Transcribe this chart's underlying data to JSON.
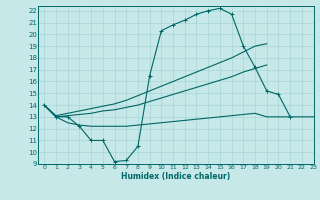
{
  "xlabel": "Humidex (Indice chaleur)",
  "bg_color": "#c6e8e8",
  "grid_color": "#a8d4d4",
  "line_color": "#006666",
  "xlim": [
    -0.5,
    23
  ],
  "ylim": [
    9,
    22.4
  ],
  "xticks": [
    0,
    1,
    2,
    3,
    4,
    5,
    6,
    7,
    8,
    9,
    10,
    11,
    12,
    13,
    14,
    15,
    16,
    17,
    18,
    19,
    20,
    21,
    22,
    23
  ],
  "yticks": [
    9,
    10,
    11,
    12,
    13,
    14,
    15,
    16,
    17,
    18,
    19,
    20,
    21,
    22
  ],
  "series": [
    {
      "x": [
        0,
        1,
        2,
        3,
        4,
        5,
        6,
        7,
        8,
        9,
        10,
        11,
        12,
        13,
        14,
        15,
        16,
        17,
        18,
        19,
        20,
        21
      ],
      "y": [
        14,
        13,
        13,
        12.2,
        11,
        11,
        9.2,
        9.3,
        10.5,
        16.5,
        20.3,
        20.8,
        21.2,
        21.7,
        22,
        22.2,
        21.7,
        19,
        17.2,
        15.2,
        14.9,
        13
      ],
      "marker": true
    },
    {
      "x": [
        0,
        1,
        2,
        3,
        4,
        5,
        6,
        7,
        8,
        9,
        10,
        11,
        12,
        13,
        14,
        15,
        16,
        17,
        18,
        19
      ],
      "y": [
        14,
        13.1,
        13.3,
        13.5,
        13.7,
        13.9,
        14.1,
        14.4,
        14.8,
        15.2,
        15.6,
        16.0,
        16.4,
        16.8,
        17.2,
        17.6,
        18.0,
        18.5,
        19.0,
        19.2
      ],
      "marker": false
    },
    {
      "x": [
        0,
        1,
        2,
        3,
        4,
        5,
        6,
        7,
        8,
        9,
        10,
        11,
        12,
        13,
        14,
        15,
        16,
        17,
        18,
        19
      ],
      "y": [
        14,
        13.0,
        13.1,
        13.2,
        13.3,
        13.5,
        13.6,
        13.8,
        14.0,
        14.3,
        14.6,
        14.9,
        15.2,
        15.5,
        15.8,
        16.1,
        16.4,
        16.8,
        17.1,
        17.4
      ],
      "marker": false
    },
    {
      "x": [
        0,
        1,
        2,
        3,
        4,
        5,
        6,
        7,
        8,
        9,
        10,
        11,
        12,
        13,
        14,
        15,
        16,
        17,
        18,
        19,
        20,
        21,
        22,
        23
      ],
      "y": [
        14,
        13.0,
        12.5,
        12.3,
        12.2,
        12.2,
        12.2,
        12.2,
        12.3,
        12.4,
        12.5,
        12.6,
        12.7,
        12.8,
        12.9,
        13.0,
        13.1,
        13.2,
        13.3,
        13.0,
        13.0,
        13.0,
        13.0,
        13.0
      ],
      "marker": false
    }
  ]
}
